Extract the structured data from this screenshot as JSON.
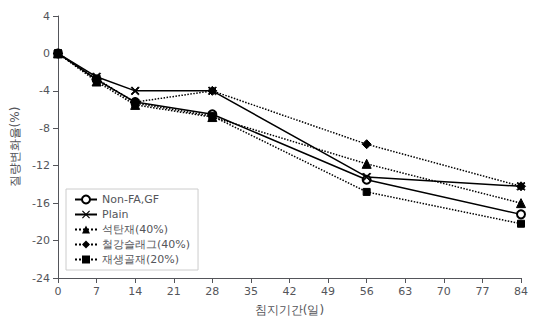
{
  "chart_data": {
    "type": "line",
    "x": [
      0,
      7,
      14,
      28,
      56,
      84
    ],
    "series": [
      {
        "name": "Non-FA,GF",
        "color": "#000000",
        "marker": "circle_open",
        "line_style": "solid",
        "values": [
          0,
          -2.8,
          -5.2,
          -6.5,
          -13.5,
          -17.2
        ]
      },
      {
        "name": "Plain",
        "color": "#000000",
        "marker": "x",
        "line_style": "solid",
        "values": [
          0,
          -2.5,
          -4.0,
          -4.0,
          -13.2,
          -14.2
        ]
      },
      {
        "name": "석탄재(40%)",
        "color": "#000000",
        "marker": "triangle",
        "line_style": "dotted",
        "values": [
          0,
          -3.0,
          -5.5,
          -6.8,
          -11.8,
          -16.0
        ]
      },
      {
        "name": "철강슬래그(40%)",
        "color": "#000000",
        "marker": "diamond",
        "line_style": "dotted",
        "values": [
          0,
          -2.8,
          -5.2,
          -4.0,
          -9.7,
          -14.2
        ]
      },
      {
        "name": "재생골재(20%)",
        "color": "#000000",
        "marker": "square",
        "line_style": "dotted",
        "values": [
          0,
          -2.7,
          -5.3,
          -6.7,
          -14.8,
          -18.2
        ]
      }
    ],
    "xlabel": "침지기간(일)",
    "ylabel": "질량변화율(%)",
    "xlim": [
      0,
      84
    ],
    "ylim": [
      -24,
      4
    ],
    "xticks": [
      0,
      7,
      14,
      21,
      28,
      35,
      42,
      49,
      56,
      63,
      70,
      77,
      84
    ],
    "yticks": [
      4,
      0,
      -4,
      -8,
      -12,
      -16,
      -20,
      -24
    ],
    "grid": false,
    "legend": "lower left"
  }
}
